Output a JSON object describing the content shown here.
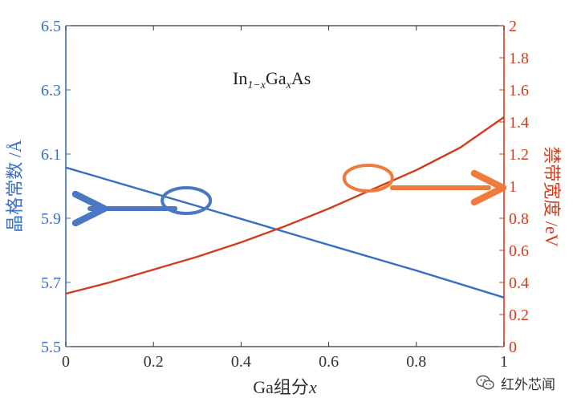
{
  "chart_data": {
    "type": "line",
    "title": "In1−xGaxAs",
    "title_parts": {
      "base1": "In",
      "sub1": "1−x",
      "base2": "Ga",
      "sub2": "x",
      "base3": "As"
    },
    "xlabel": "Ga组分x",
    "xlabel_parts": {
      "text": "Ga组分",
      "var": "x"
    },
    "ylabel_left": "晶格常数 /Å",
    "ylabel_right": "禁带宽度 /eV",
    "xlim": [
      0,
      1
    ],
    "ylim_left": [
      5.5,
      6.5
    ],
    "ylim_right": [
      0,
      2
    ],
    "x_ticks": [
      "0",
      "0.2",
      "0.4",
      "0.6",
      "0.8",
      "1"
    ],
    "x_tick_values": [
      0,
      0.2,
      0.4,
      0.6,
      0.8,
      1
    ],
    "y_ticks_left": [
      "5.5",
      "5.7",
      "5.9",
      "6.1",
      "6.3",
      "6.5"
    ],
    "y_tick_values_left": [
      5.5,
      5.7,
      5.9,
      6.1,
      6.3,
      6.5
    ],
    "y_ticks_right": [
      "0",
      "0.2",
      "0.4",
      "0.6",
      "0.8",
      "1",
      "1.2",
      "1.4",
      "1.6",
      "1.8",
      "2"
    ],
    "y_tick_values_right": [
      0,
      0.2,
      0.4,
      0.6,
      0.8,
      1,
      1.2,
      1.4,
      1.6,
      1.8,
      2
    ],
    "series": [
      {
        "name": "晶格常数",
        "axis": "left",
        "color": "#3a6fc4",
        "x": [
          0,
          0.2,
          0.4,
          0.6,
          0.8,
          1
        ],
        "y": [
          6.058,
          5.978,
          5.898,
          5.817,
          5.737,
          5.653
        ]
      },
      {
        "name": "禁带宽度",
        "axis": "right",
        "color": "#d23c1f",
        "x": [
          0,
          0.1,
          0.2,
          0.3,
          0.4,
          0.5,
          0.6,
          0.7,
          0.8,
          0.9,
          1
        ],
        "y": [
          0.33,
          0.4,
          0.48,
          0.56,
          0.65,
          0.75,
          0.86,
          0.98,
          1.1,
          1.24,
          1.43
        ]
      }
    ],
    "annotations": [
      {
        "type": "ellipse-arrow",
        "points_to": "left",
        "at_x": 0.275,
        "at_y_left": 5.955,
        "color": "#4a78c2"
      },
      {
        "type": "ellipse-arrow",
        "points_to": "right",
        "at_x": 0.69,
        "at_y_right": 1.05,
        "color": "#ee7b3b"
      }
    ],
    "colors": {
      "left_axis": "#3a6fc4",
      "right_axis": "#d23c1f",
      "frame": "#333333"
    }
  },
  "watermark": {
    "text": "红外芯闻",
    "icon": "wechat-icon"
  }
}
